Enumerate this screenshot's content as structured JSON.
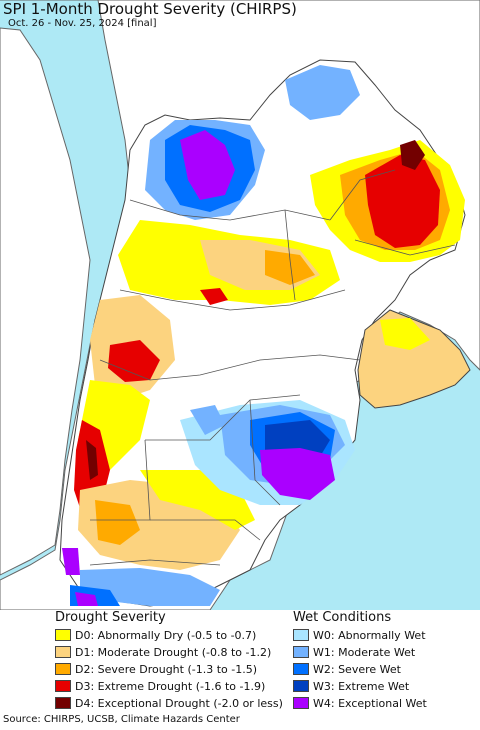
{
  "title": "SPI 1-Month Drought Severity (CHIRPS)",
  "subtitle": "Oct. 26 - Nov. 25, 2024 [final]",
  "legend": {
    "drought_heading": "Drought Severity",
    "wet_heading": "Wet Conditions",
    "drought": [
      {
        "label": "D0: Abnormally Dry (-0.5 to -0.7)",
        "color": "#ffff00"
      },
      {
        "label": "D1: Moderate Drought (-0.8 to -1.2)",
        "color": "#fcd37f"
      },
      {
        "label": "D2: Severe Drought (-1.3 to -1.5)",
        "color": "#ffaa00"
      },
      {
        "label": "D3: Extreme Drought (-1.6 to -1.9)",
        "color": "#e60000"
      },
      {
        "label": "D4: Exceptional Drought (-2.0 or less)",
        "color": "#730000"
      }
    ],
    "wet": [
      {
        "label": "W0: Abnormally Wet",
        "color": "#aae5ff"
      },
      {
        "label": "W1: Moderate Wet",
        "color": "#73b2ff"
      },
      {
        "label": "W2: Severe Wet",
        "color": "#0070ff"
      },
      {
        "label": "W3: Extreme Wet",
        "color": "#0040c0"
      },
      {
        "label": "W4: Exceptional Wet",
        "color": "#aa00ff"
      }
    ]
  },
  "source": "Source: CHIRPS, UCSB, Climate Hazards Center",
  "colors": {
    "ocean": "#aee9f5",
    "outside_land": "#ffffff",
    "borders": "#555555"
  }
}
